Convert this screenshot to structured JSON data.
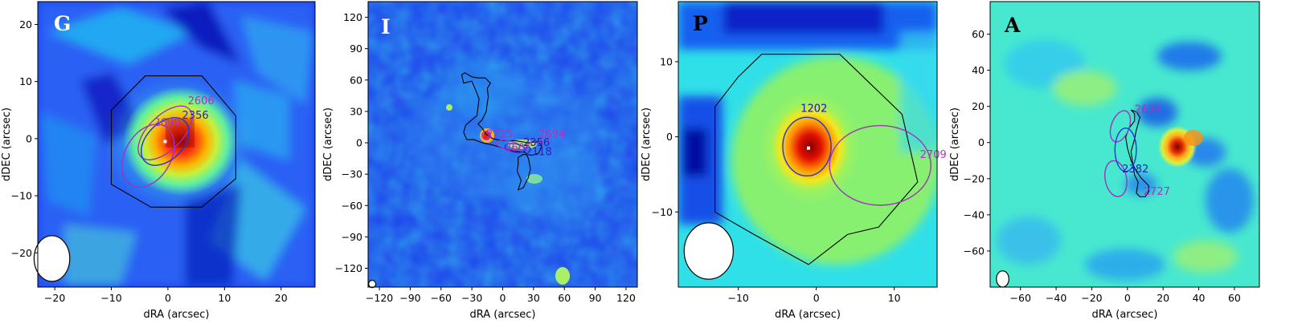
{
  "figure": {
    "colors": {
      "contour": "#000000",
      "ellipse_magenta": "#a033b8",
      "ellipse_blue": "#2233dd",
      "label_magenta": "#b030c0",
      "label_blue": "#2222bb",
      "tag_white": "#ffffff",
      "tag_black": "#000000"
    }
  },
  "chart_data": [
    {
      "type": "heatmap",
      "panel": "G",
      "xlabel": "dRA (arcsec)",
      "ylabel": "dDEC (arcsec)",
      "xlim": [
        23,
        -26
      ],
      "ylim": [
        -26,
        24
      ],
      "xticks": [
        {
          "v": 20,
          "t": "−20"
        },
        {
          "v": 10,
          "t": "−10"
        },
        {
          "v": 0,
          "t": "0"
        },
        {
          "v": -10,
          "t": "10"
        },
        {
          "v": -20,
          "t": "20"
        }
      ],
      "yticks": [
        {
          "v": -20,
          "t": "−20"
        },
        {
          "v": -10,
          "t": "−10"
        },
        {
          "v": 0,
          "t": "0"
        },
        {
          "v": 10,
          "t": "10"
        },
        {
          "v": 20,
          "t": "20"
        }
      ],
      "tag_color": "#ffffff",
      "source_labels": [
        {
          "text": "2606",
          "x": -3.5,
          "y": 6.0,
          "color": "magenta"
        },
        {
          "text": "2356",
          "x": -2.5,
          "y": 3.5,
          "color": "blue"
        },
        {
          "text": "2690",
          "x": 2.5,
          "y": 2.2,
          "color": "magenta"
        }
      ],
      "ellipses": [
        {
          "cx": 3.5,
          "cy": -3.0,
          "rx": 6.0,
          "ry": 4.0,
          "rot": -60,
          "color": "magenta"
        },
        {
          "cx": 0.5,
          "cy": 1.0,
          "rx": 6.0,
          "ry": 3.0,
          "rot": -45,
          "color": "magenta"
        },
        {
          "cx": 0.5,
          "cy": -0.5,
          "rx": 5.0,
          "ry": 3.2,
          "rot": -45,
          "color": "blue"
        }
      ],
      "contour": [
        [
          -4,
          11
        ],
        [
          4,
          11
        ],
        [
          10,
          5
        ],
        [
          10,
          -8
        ],
        [
          3,
          -12
        ],
        [
          -6,
          -12
        ],
        [
          -12,
          -7
        ],
        [
          -12,
          4
        ],
        [
          -6,
          11
        ]
      ],
      "beam": {
        "x": 20.5,
        "y": -21,
        "w": 6.3,
        "h": 8
      }
    },
    {
      "type": "heatmap",
      "panel": "I",
      "xlabel": "dRA (arcsec)",
      "ylabel": "dDEC (arcsec)",
      "xlim": [
        131,
        -131
      ],
      "ylim": [
        -138,
        135
      ],
      "xticks": [
        {
          "v": 120,
          "t": "−120"
        },
        {
          "v": 90,
          "t": "−90"
        },
        {
          "v": 60,
          "t": "−60"
        },
        {
          "v": 30,
          "t": "−30"
        },
        {
          "v": 0,
          "t": "0"
        },
        {
          "v": -30,
          "t": "30"
        },
        {
          "v": -60,
          "t": "60"
        },
        {
          "v": -90,
          "t": "90"
        },
        {
          "v": -120,
          "t": "120"
        }
      ],
      "yticks": [
        {
          "v": -120,
          "t": "−120"
        },
        {
          "v": -90,
          "t": "−90"
        },
        {
          "v": -60,
          "t": "−60"
        },
        {
          "v": -30,
          "t": "−30"
        },
        {
          "v": 0,
          "t": "0"
        },
        {
          "v": 30,
          "t": "30"
        },
        {
          "v": 60,
          "t": "60"
        },
        {
          "v": 90,
          "t": "90"
        },
        {
          "v": 120,
          "t": "120"
        }
      ],
      "tag_color": "#ffffff",
      "source_labels": [
        {
          "text": "2694",
          "x": -35,
          "y": 5,
          "color": "magenta"
        },
        {
          "text": "2606",
          "x": -2,
          "y": -8,
          "color": "magenta"
        },
        {
          "text": "2690",
          "x": -20,
          "y": -3,
          "color": "magenta"
        },
        {
          "text": "2356",
          "x": -20,
          "y": -3,
          "color": "blue"
        },
        {
          "text": "2118",
          "x": -22,
          "y": -12,
          "color": "blue"
        },
        {
          "text": "2725",
          "x": 16,
          "y": 5,
          "color": "magenta"
        }
      ],
      "ellipses": [
        {
          "cx": 16,
          "cy": 7,
          "rx": 4,
          "ry": 4,
          "rot": 0,
          "color": "magenta"
        },
        {
          "cx": -5,
          "cy": -2,
          "rx": 12,
          "ry": 4,
          "rot": 10,
          "color": "magenta"
        },
        {
          "cx": -12,
          "cy": -5,
          "rx": 10,
          "ry": 4,
          "rot": 10,
          "color": "blue"
        }
      ],
      "contour": [
        [
          40,
          65
        ],
        [
          38,
          57
        ],
        [
          30,
          59
        ],
        [
          27,
          52
        ],
        [
          23,
          42
        ],
        [
          24,
          34
        ],
        [
          25,
          26
        ],
        [
          30,
          22
        ],
        [
          36,
          17
        ],
        [
          38,
          10
        ],
        [
          35,
          3
        ],
        [
          28,
          3
        ],
        [
          20,
          0
        ],
        [
          10,
          -2
        ],
        [
          0,
          -5
        ],
        [
          -10,
          -8
        ],
        [
          -22,
          -9
        ],
        [
          -25,
          -15
        ],
        [
          -27,
          -25
        ],
        [
          -25,
          -33
        ],
        [
          -20,
          -43
        ],
        [
          -15,
          -45
        ],
        [
          -18,
          -36
        ],
        [
          -14,
          -27
        ],
        [
          -15,
          -21
        ],
        [
          -15,
          -14
        ],
        [
          -20,
          -11
        ],
        [
          -28,
          -12
        ],
        [
          -35,
          -10
        ],
        [
          -38,
          -3
        ],
        [
          -34,
          1
        ],
        [
          -25,
          0
        ],
        [
          -12,
          2
        ],
        [
          0,
          2
        ],
        [
          10,
          4
        ],
        [
          16,
          8
        ],
        [
          20,
          14
        ],
        [
          24,
          18
        ],
        [
          20,
          22
        ],
        [
          16,
          30
        ],
        [
          15,
          38
        ],
        [
          14,
          44
        ],
        [
          15,
          52
        ],
        [
          12,
          57
        ],
        [
          17,
          62
        ],
        [
          24,
          62
        ],
        [
          30,
          63
        ],
        [
          37,
          67
        ]
      ],
      "beam": {
        "x": 127,
        "y": -135,
        "w": 7,
        "h": 7
      }
    },
    {
      "type": "heatmap",
      "panel": "P",
      "xlabel": "dRA (arcsec)",
      "ylabel": "dDEC (arcsec)",
      "xlim": [
        17.7,
        -15.5
      ],
      "ylim": [
        -20,
        18
      ],
      "xticks": [
        {
          "v": 10,
          "t": "−10"
        },
        {
          "v": 0,
          "t": "0"
        },
        {
          "v": -10,
          "t": "10"
        }
      ],
      "yticks": [
        {
          "v": -10,
          "t": "−10"
        },
        {
          "v": 0,
          "t": "0"
        },
        {
          "v": 10,
          "t": "10"
        }
      ],
      "tag_color": "#000000",
      "source_labels": [
        {
          "text": "1202",
          "x": 2,
          "y": 3.3,
          "color": "magenta"
        },
        {
          "text": "1202",
          "x": 2,
          "y": 3.3,
          "color": "blue"
        },
        {
          "text": "2709",
          "x": -13.3,
          "y": -2.8,
          "color": "magenta"
        }
      ],
      "ellipses": [
        {
          "cx": 1.2,
          "cy": -1.3,
          "rx": 3.1,
          "ry": 3.9,
          "rot": 0,
          "color": "blue"
        },
        {
          "cx": -8.2,
          "cy": -3.8,
          "rx": 6.5,
          "ry": 5.3,
          "rot": 0,
          "color": "magenta"
        }
      ],
      "contour": [
        [
          7,
          11
        ],
        [
          -3,
          11
        ],
        [
          -6,
          8
        ],
        [
          -11,
          3
        ],
        [
          -13,
          -6
        ],
        [
          -8,
          -12
        ],
        [
          -4,
          -13
        ],
        [
          1,
          -17
        ],
        [
          8,
          -13
        ],
        [
          13,
          -10
        ],
        [
          13,
          4
        ],
        [
          10,
          8
        ],
        [
          7,
          11
        ]
      ],
      "beam": {
        "x": 13.8,
        "y": -15.2,
        "w": 6.3,
        "h": 7.5
      }
    },
    {
      "type": "heatmap",
      "panel": "A",
      "xlabel": "dRA (arcsec)",
      "ylabel": "dDEC (arcsec)",
      "xlim": [
        77,
        -74
      ],
      "ylim": [
        -80,
        78
      ],
      "xticks": [
        {
          "v": 60,
          "t": "−60"
        },
        {
          "v": 40,
          "t": "−40"
        },
        {
          "v": 20,
          "t": "−20"
        },
        {
          "v": 0,
          "t": "0"
        },
        {
          "v": -20,
          "t": "20"
        },
        {
          "v": -40,
          "t": "40"
        },
        {
          "v": -60,
          "t": "60"
        }
      ],
      "yticks": [
        {
          "v": -60,
          "t": "−60"
        },
        {
          "v": -40,
          "t": "−40"
        },
        {
          "v": -20,
          "t": "−20"
        },
        {
          "v": 0,
          "t": "0"
        },
        {
          "v": 20,
          "t": "20"
        },
        {
          "v": 40,
          "t": "40"
        },
        {
          "v": 60,
          "t": "60"
        }
      ],
      "tag_color": "#000000",
      "source_labels": [
        {
          "text": "2634",
          "x": -4,
          "y": 16.5,
          "color": "magenta"
        },
        {
          "text": "2382",
          "x": 3,
          "y": -16.5,
          "color": "blue"
        },
        {
          "text": "2727",
          "x": -9,
          "y": -29,
          "color": "magenta"
        }
      ],
      "ellipses": [
        {
          "cx": 4,
          "cy": 9,
          "rx": 5,
          "ry": 9,
          "rot": 20,
          "color": "magenta"
        },
        {
          "cx": 6.5,
          "cy": -20,
          "rx": 6,
          "ry": 10,
          "rot": -10,
          "color": "magenta"
        },
        {
          "cx": 1,
          "cy": -4,
          "rx": 6,
          "ry": 12,
          "rot": 0,
          "color": "blue"
        }
      ],
      "contour": [
        [
          -2,
          18
        ],
        [
          -5,
          17
        ],
        [
          -7,
          14
        ],
        [
          -5,
          7
        ],
        [
          -4,
          2
        ],
        [
          -2,
          -5
        ],
        [
          -3,
          -12
        ],
        [
          -4,
          -18
        ],
        [
          -6,
          -22
        ],
        [
          -5,
          -28
        ],
        [
          -7,
          -30
        ],
        [
          -10,
          -30
        ],
        [
          -12,
          -27
        ],
        [
          -12,
          -24
        ],
        [
          -8,
          -20
        ],
        [
          -5,
          -16
        ],
        [
          -2,
          -10
        ],
        [
          0,
          -3
        ],
        [
          1,
          3
        ],
        [
          -1,
          8
        ],
        [
          -4,
          12
        ],
        [
          -4,
          16
        ]
      ],
      "beam": {
        "x": 70,
        "y": -75.5,
        "w": 7,
        "h": 9
      }
    }
  ]
}
